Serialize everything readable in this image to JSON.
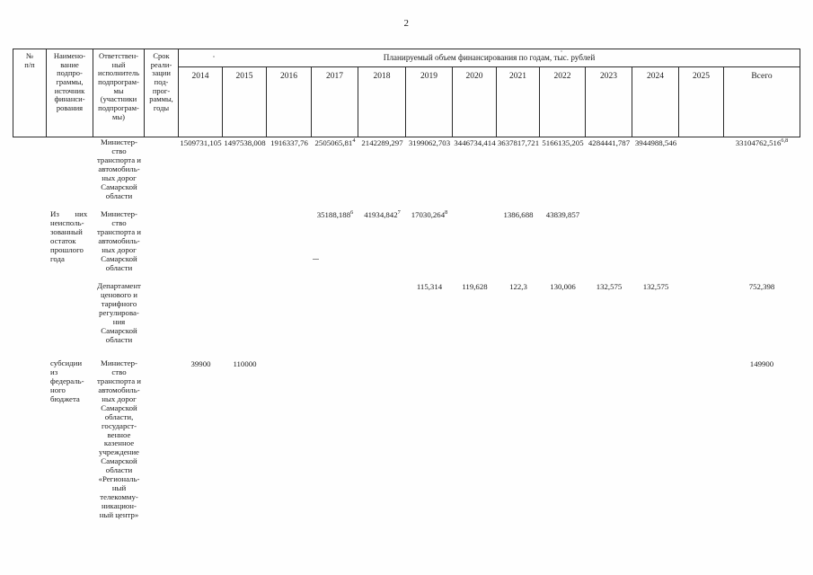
{
  "page_number": "2",
  "table": {
    "headers": {
      "col_num": "№\nп/п",
      "col_name": "Наимено-\nвание\nподпро-\nграммы,\nисточник\nфинанси-\nрования",
      "col_executor": "Ответствен-\nный\nисполнитель\nподпрограм-\nмы\n(участники\nподпрограм-\nмы)",
      "col_term": "Срок\nреали-\nзации\nпод-\nпрог-\nраммы,\nгоды",
      "finance_span": "Планируемый объем финансирования по годам, тыс. рублей",
      "years": [
        "2014",
        "2015",
        "2016",
        "2017",
        "2018",
        "2019",
        "2020",
        "2021",
        "2022",
        "2023",
        "2024",
        "2025"
      ],
      "total_label": "Всего"
    },
    "rows": [
      {
        "executor": "Министер-\nство\nтранспорта и\nавтомобиль-\nных дорог\nСамарской\nобласти",
        "values": {
          "y2014": "1509731,105",
          "y2015": "1497538,008",
          "y2016": "1916337,76",
          "y2017": {
            "v": "2505065,81",
            "fn": "4"
          },
          "y2018": "2142289,297",
          "y2019": "3199062,703",
          "y2020": "3446734,414",
          "y2021": "3637817,721",
          "y2022": "5166135,205",
          "y2023": "4284441,787",
          "y2024": "3944988,546",
          "total": {
            "v": "33104762,516",
            "fn": "6,8"
          }
        }
      },
      {
        "name": "Из        них\nнеисполь-\nзованный\nостаток\nпрошлого\nгода",
        "executor": "Министер-\nство\nтранспорта и\nавтомобиль-\nных дорог\nСамарской\nобласти",
        "values": {
          "y2017": {
            "v": "35188,188",
            "fn": "6"
          },
          "y2018": {
            "v": "41934,842",
            "fn": "7"
          },
          "y2019": {
            "v": "17030,264",
            "fn": "8"
          },
          "y2021": "1386,688",
          "y2022": "43839,857"
        }
      },
      {
        "executor": "Департамент\nценового и\nтарифного\nрегулирова-\nния\nСамарской\nобласти",
        "values": {
          "y2019": "115,314",
          "y2020": "119,628",
          "y2021": "122,3",
          "y2022": "130,006",
          "y2023": "132,575",
          "y2024": "132,575",
          "total": "752,398"
        }
      },
      {
        "name": "субсидии\nиз\nфедераль-\nного\nбюджета",
        "executor": "Министер-\nство\nтранспорта и\nавтомобиль-\nных дорог\nСамарской\nобласти,\nгосударст-\nвенное\nказенное\nучреждение\nСамарской\nобласти\n«Региональ-\nный\nтелекомму-\nникацион-\nный центр»",
        "values": {
          "y2014": "39900",
          "y2015": "110000",
          "total": "149900"
        }
      }
    ]
  }
}
